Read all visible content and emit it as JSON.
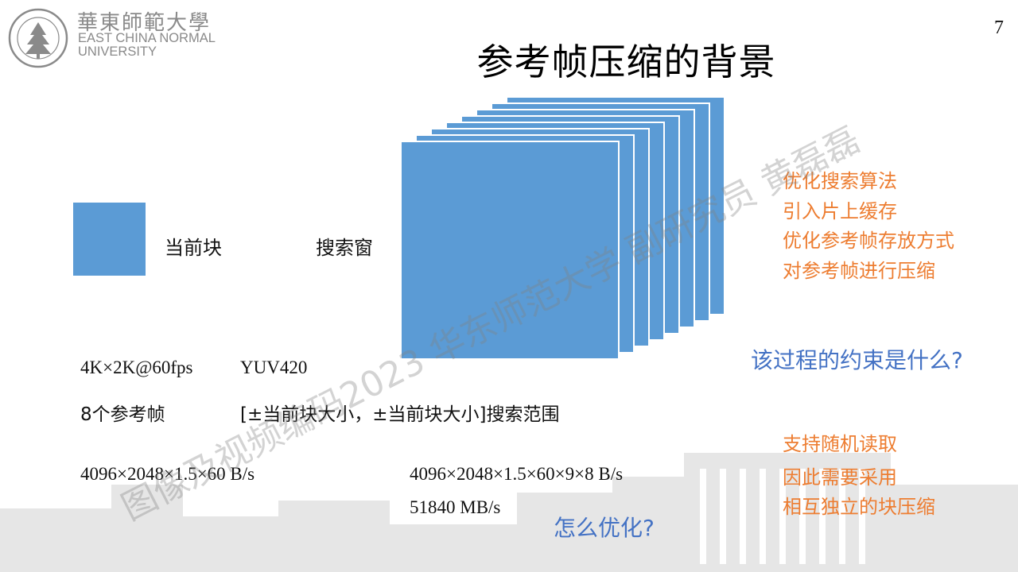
{
  "header": {
    "logo_cn": "華東師範大學",
    "logo_en_line1": "EAST CHINA NORMAL",
    "logo_en_line2": "UNIVERSITY",
    "page_number": "7"
  },
  "slide": {
    "title": "参考帧压缩的背景",
    "current_block_label": "当前块",
    "search_window_label": "搜索窗",
    "options": [
      "优化搜索算法",
      "引入片上缓存",
      "优化参考帧存放方式",
      "对参考帧进行压缩"
    ],
    "constraint_question": "该过程的约束是什么?",
    "spec_resolution": "4K×2K@60fps",
    "spec_format": "YUV420",
    "spec_refs": "8个参考帧",
    "spec_range": "[±当前块大小，±当前块大小]搜索范围",
    "bandwidth_single": "4096×2048×1.5×60 B/s",
    "bandwidth_total": "4096×2048×1.5×60×9×8 B/s",
    "bandwidth_result": "51840 MB/s",
    "optimize_question": "怎么优化?",
    "answer_lines": [
      "支持随机读取",
      "因此需要采用",
      "相互独立的块压缩"
    ],
    "watermark": "图像及视频编码2023 华东师范大学 副研究员 黄磊磊"
  },
  "colors": {
    "block_blue": "#5b9bd5",
    "orange": "#ed7d31",
    "question_blue": "#4472c4"
  }
}
